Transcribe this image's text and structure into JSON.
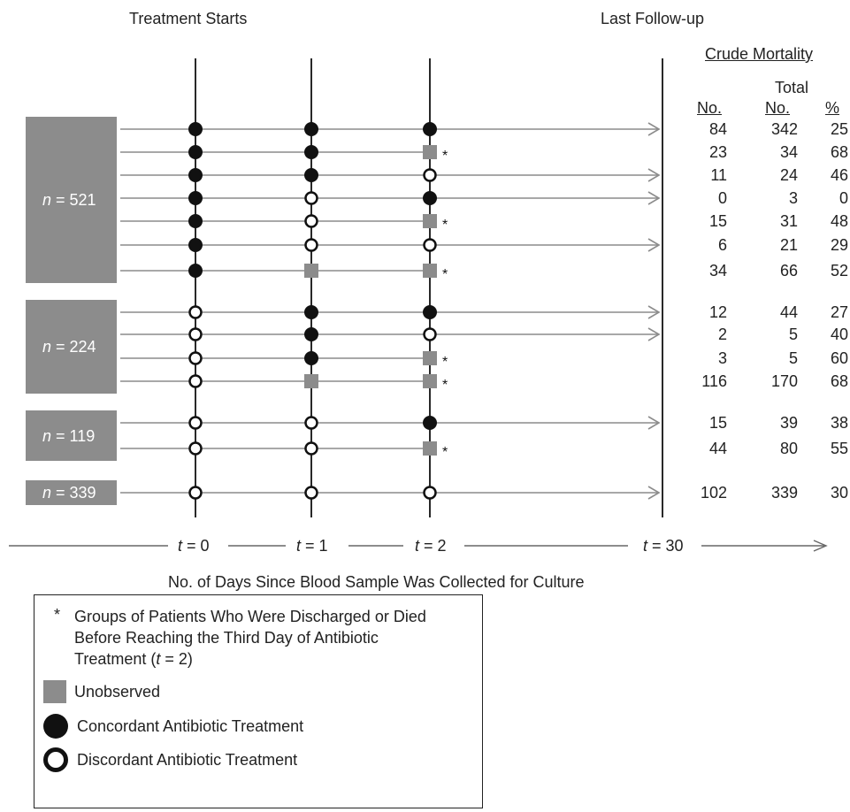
{
  "header": {
    "treatment_starts": "Treatment Starts",
    "last_followup": "Last Follow-up",
    "crude_mortality": "Crude Mortality",
    "col_no": "No.",
    "col_total_top": "Total",
    "col_total_bottom": "No.",
    "col_pct": "%"
  },
  "groups": [
    {
      "label": "n = 521"
    },
    {
      "label": "n = 224"
    },
    {
      "label": "n = 119"
    },
    {
      "label": "n = 339"
    }
  ],
  "rows": [
    {
      "t0": "C",
      "t1": "C",
      "t2": "C",
      "arrow": true,
      "star": false,
      "no": "84",
      "total": "342",
      "pct": "25"
    },
    {
      "t0": "C",
      "t1": "C",
      "t2": "U",
      "arrow": false,
      "star": true,
      "no": "23",
      "total": "34",
      "pct": "68"
    },
    {
      "t0": "C",
      "t1": "C",
      "t2": "D",
      "arrow": true,
      "star": false,
      "no": "11",
      "total": "24",
      "pct": "46"
    },
    {
      "t0": "C",
      "t1": "D",
      "t2": "C",
      "arrow": true,
      "star": false,
      "no": "0",
      "total": "3",
      "pct": "0"
    },
    {
      "t0": "C",
      "t1": "D",
      "t2": "U",
      "arrow": false,
      "star": true,
      "no": "15",
      "total": "31",
      "pct": "48"
    },
    {
      "t0": "C",
      "t1": "D",
      "t2": "D",
      "arrow": true,
      "star": false,
      "no": "6",
      "total": "21",
      "pct": "29"
    },
    {
      "t0": "C",
      "t1": "U",
      "t2": "U",
      "arrow": false,
      "star": true,
      "no": "34",
      "total": "66",
      "pct": "52"
    },
    {
      "t0": "D",
      "t1": "C",
      "t2": "C",
      "arrow": true,
      "star": false,
      "no": "12",
      "total": "44",
      "pct": "27"
    },
    {
      "t0": "D",
      "t1": "C",
      "t2": "D",
      "arrow": true,
      "star": false,
      "no": "2",
      "total": "5",
      "pct": "40"
    },
    {
      "t0": "D",
      "t1": "C",
      "t2": "U",
      "arrow": false,
      "star": true,
      "no": "3",
      "total": "5",
      "pct": "60"
    },
    {
      "t0": "D",
      "t1": "U",
      "t2": "U",
      "arrow": false,
      "star": true,
      "no": "116",
      "total": "170",
      "pct": "68"
    },
    {
      "t0": "D",
      "t1": "D",
      "t2": "C",
      "arrow": true,
      "star": false,
      "no": "15",
      "total": "39",
      "pct": "38"
    },
    {
      "t0": "D",
      "t1": "D",
      "t2": "U",
      "arrow": false,
      "star": true,
      "no": "44",
      "total": "80",
      "pct": "55"
    },
    {
      "t0": "D",
      "t1": "D",
      "t2": "D",
      "arrow": true,
      "star": false,
      "no": "102",
      "total": "339",
      "pct": "30"
    }
  ],
  "timeline": {
    "ticks": [
      "t = 0",
      "t = 1",
      "t = 2",
      "t = 30"
    ],
    "caption": "No. of Days Since Blood Sample Was Collected for Culture"
  },
  "legend": {
    "star_symbol": "*",
    "star_text_1": "Groups of Patients Who Were Discharged or Died",
    "star_text_2": "Before Reaching the Third Day of Antibiotic",
    "star_text_3": "Treatment (t = 2)",
    "unobserved": "Unobserved",
    "concordant": "Concordant Antibiotic Treatment",
    "discordant": "Discordant Antibiotic Treatment"
  },
  "colors": {
    "line": "#8c8c8c",
    "box": "#8c8c8c",
    "ink": "#222222"
  }
}
